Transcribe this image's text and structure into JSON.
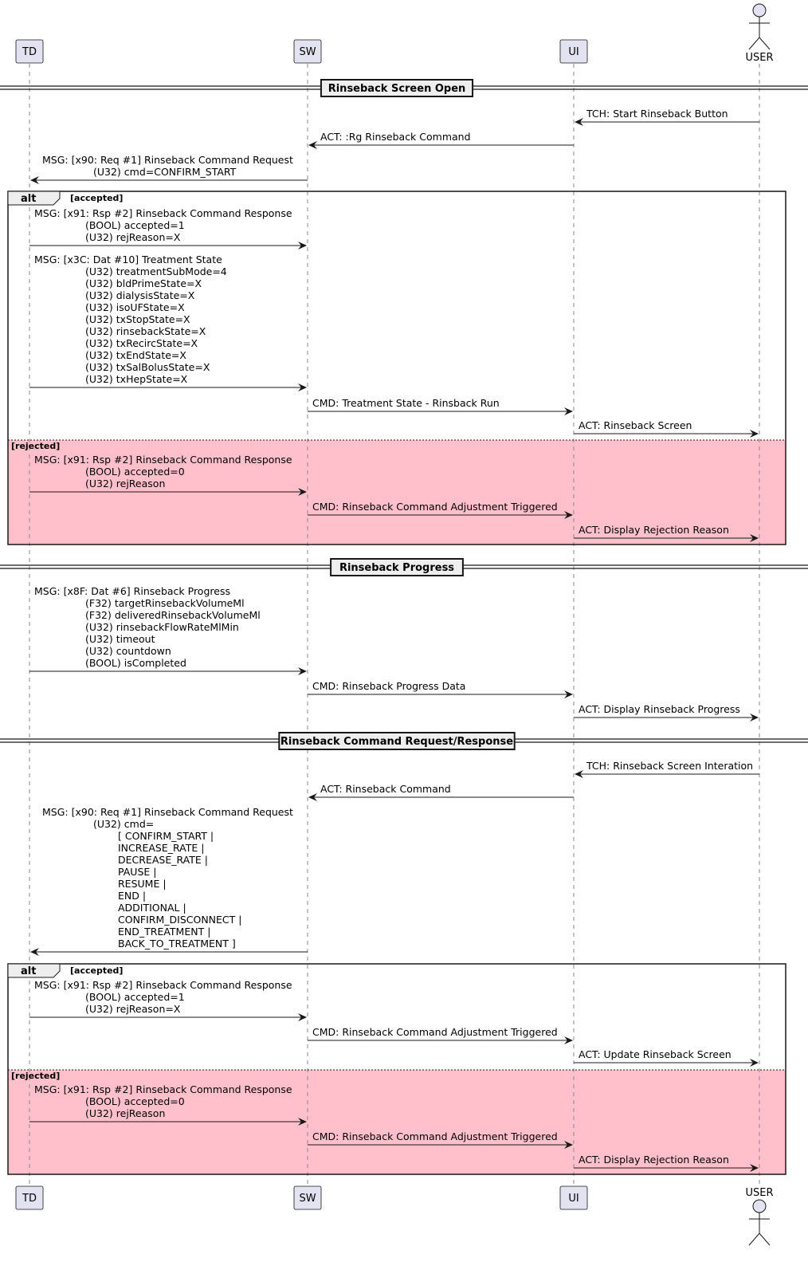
{
  "participants": [
    {
      "id": "TD",
      "label": "TD",
      "kind": "participant"
    },
    {
      "id": "SW",
      "label": "SW",
      "kind": "participant"
    },
    {
      "id": "UI",
      "label": "UI",
      "kind": "participant"
    },
    {
      "id": "USER",
      "label": "USER",
      "kind": "actor"
    }
  ],
  "colors": {
    "participant_fill": "#E2E2F0",
    "rejected_fill": "#FFC0CB",
    "divider_fill": "#EEEEEE",
    "line": "#181818"
  },
  "dividers": [
    "Rinseback Screen Open",
    "Rinseback Progress",
    "Rinseback Command Request/Response"
  ],
  "groups": [
    {
      "label": "alt",
      "conditions": [
        "accepted",
        "rejected"
      ]
    },
    {
      "label": "alt",
      "conditions": [
        "accepted",
        "rejected"
      ]
    }
  ],
  "messages": [
    {
      "from": "USER",
      "to": "UI",
      "lines": [
        "TCH: Start Rinseback Button"
      ]
    },
    {
      "from": "UI",
      "to": "SW",
      "lines": [
        "ACT: :Rg Rinseback Command"
      ]
    },
    {
      "from": "SW",
      "to": "TD",
      "lines": [
        "MSG: [x90: Req #1] Rinseback Command Request",
        "(U32) cmd=CONFIRM_START"
      ]
    },
    {
      "from": "TD",
      "to": "SW",
      "lines": [
        "MSG: [x91: Rsp #2] Rinseback Command Response",
        "(BOOL) accepted=1",
        "(U32)  rejReason=X"
      ]
    },
    {
      "from": "TD",
      "to": "SW",
      "lines": [
        "MSG: [x3C: Dat #10] Treatment State",
        "(U32) treatmentSubMode=4",
        "(U32) bldPrimeState=X",
        "(U32) dialysisState=X",
        "(U32) isoUFState=X",
        "(U32) txStopState=X",
        "(U32) rinsebackState=X",
        "(U32) txRecircState=X",
        "(U32) txEndState=X",
        "(U32) txSalBolusState=X",
        "(U32) txHepState=X"
      ]
    },
    {
      "from": "SW",
      "to": "UI",
      "lines": [
        "CMD: Treatment State - Rinsback Run"
      ]
    },
    {
      "from": "UI",
      "to": "USER",
      "lines": [
        "ACT: Rinseback Screen"
      ]
    },
    {
      "from": "TD",
      "to": "SW",
      "lines": [
        "MSG: [x91: Rsp #2] Rinseback Command Response",
        "(BOOL) accepted=0",
        "(U32)  rejReason"
      ]
    },
    {
      "from": "SW",
      "to": "UI",
      "lines": [
        "CMD: Rinseback Command Adjustment Triggered"
      ]
    },
    {
      "from": "UI",
      "to": "USER",
      "lines": [
        "ACT: Display Rejection Reason"
      ]
    },
    {
      "from": "TD",
      "to": "SW",
      "lines": [
        "MSG: [x8F: Dat #6] Rinseback Progress",
        "(F32) targetRinsebackVolumeMl",
        "(F32) deliveredRinsebackVolumeMl",
        "(U32) rinsebackFlowRateMlMin",
        "(U32) timeout",
        "(U32) countdown",
        "(BOOL) isCompleted"
      ]
    },
    {
      "from": "SW",
      "to": "UI",
      "lines": [
        "CMD: Rinseback Progress Data"
      ]
    },
    {
      "from": "UI",
      "to": "USER",
      "lines": [
        "ACT: Display Rinseback Progress"
      ]
    },
    {
      "from": "USER",
      "to": "UI",
      "lines": [
        "TCH: Rinseback Screen Interation"
      ]
    },
    {
      "from": "UI",
      "to": "SW",
      "lines": [
        "ACT: Rinseback Command"
      ]
    },
    {
      "from": "SW",
      "to": "TD",
      "lines": [
        "MSG: [x90: Req #1] Rinseback Command Request",
        "(U32) cmd=",
        "[ CONFIRM_START |",
        "INCREASE_RATE |",
        "DECREASE_RATE |",
        "PAUSE |",
        "RESUME |",
        "END |",
        "ADDITIONAL |",
        "CONFIRM_DISCONNECT |",
        "END_TREATMENT |",
        "BACK_TO_TREATMENT ]"
      ]
    },
    {
      "from": "TD",
      "to": "SW",
      "lines": [
        "MSG: [x91: Rsp #2] Rinseback Command Response",
        "(BOOL) accepted=1",
        "(U32)  rejReason=X"
      ]
    },
    {
      "from": "SW",
      "to": "UI",
      "lines": [
        "CMD: Rinseback Command Adjustment Triggered"
      ]
    },
    {
      "from": "UI",
      "to": "USER",
      "lines": [
        "ACT: Update Rinseback Screen"
      ]
    },
    {
      "from": "TD",
      "to": "SW",
      "lines": [
        "MSG: [x91: Rsp #2] Rinseback Command Response",
        "(BOOL) accepted=0",
        "(U32)  rejReason"
      ]
    },
    {
      "from": "SW",
      "to": "UI",
      "lines": [
        "CMD: Rinseback Command Adjustment Triggered"
      ]
    },
    {
      "from": "UI",
      "to": "USER",
      "lines": [
        "ACT: Display Rejection Reason"
      ]
    }
  ]
}
